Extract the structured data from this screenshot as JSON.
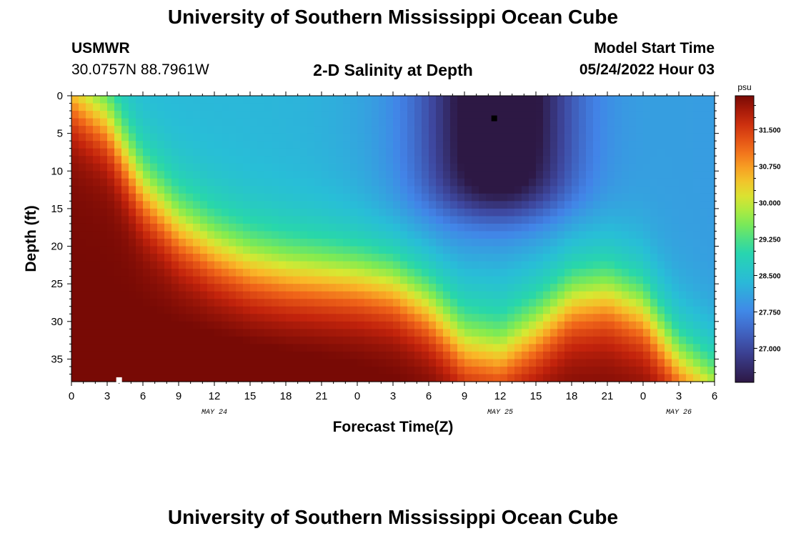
{
  "header": {
    "title": "University of Southern Mississippi Ocean Cube",
    "station": "USMWR",
    "coords": "30.0757N  88.7961W",
    "plot_title": "2-D Salinity at Depth",
    "model_start_label": "Model Start Time",
    "model_start_value": "05/24/2022 Hour 03"
  },
  "footer": {
    "title": "University of Southern Mississippi Ocean Cube"
  },
  "chart_data": {
    "type": "heatmap",
    "title": "2-D Salinity at Depth",
    "xlabel": "Forecast Time(Z)",
    "ylabel": "Depth (ft)",
    "x_ticks": [
      "0",
      "3",
      "6",
      "9",
      "12",
      "15",
      "18",
      "21",
      "0",
      "3",
      "6",
      "9",
      "12",
      "15",
      "18",
      "21",
      "0",
      "3",
      "6"
    ],
    "x_hours": [
      0,
      3,
      6,
      9,
      12,
      15,
      18,
      21,
      24,
      27,
      30,
      33,
      36,
      39,
      42,
      45,
      48,
      51,
      54
    ],
    "xlim": [
      0,
      54
    ],
    "day_labels": [
      {
        "hour": 12,
        "text": "MAY 24"
      },
      {
        "hour": 36,
        "text": "MAY 25"
      },
      {
        "hour": 51,
        "text": "MAY 26"
      }
    ],
    "y_ticks": [
      "0",
      "5",
      "10",
      "15",
      "20",
      "25",
      "30",
      "35"
    ],
    "y_values": [
      0,
      5,
      10,
      15,
      20,
      25,
      30,
      35
    ],
    "ylim": [
      0,
      38
    ],
    "colorbar": {
      "unit": "psu",
      "ticks": [
        "31.500",
        "30.750",
        "30.000",
        "29.250",
        "28.500",
        "27.750",
        "27.000"
      ],
      "tick_values": [
        31.5,
        30.75,
        30.0,
        29.25,
        28.5,
        27.75,
        27.0
      ],
      "range": [
        26.3,
        32.2
      ]
    },
    "field_approx": {
      "description_note": "",
      "surface_boundary_hour": [
        0,
        6,
        12,
        18,
        24,
        30,
        36,
        42,
        48,
        54
      ],
      "min_center": {
        "hour": 36,
        "depth_ft": 4,
        "value": 26.35
      },
      "max_center": {
        "hour": 2,
        "depth_ft": 38,
        "value": 31.9
      }
    },
    "markers": [
      {
        "hour": 35.5,
        "depth_ft": 3,
        "color": "#000000"
      },
      {
        "hour": 4,
        "depth_ft": 37.8,
        "color": "#ffffff"
      }
    ]
  }
}
